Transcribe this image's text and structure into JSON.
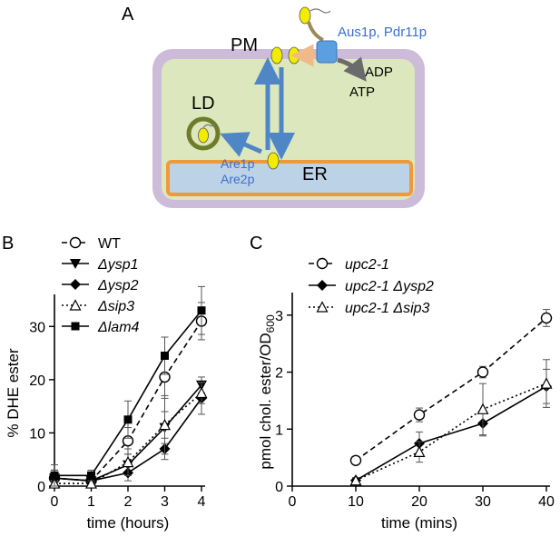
{
  "panels": {
    "a": {
      "letter": "A",
      "pm_label": "PM",
      "ld_label": "LD",
      "er_label": "ER",
      "transporter_label": "Aus1p, Pdr11p",
      "adp_label": "ADP",
      "atp_label": "ATP",
      "acyltransferase_1": "Are1p",
      "acyltransferase_2": "Are2p",
      "colors": {
        "cell_wall": "#cdbcd9",
        "cytoplasm": "#dde7bd",
        "er_fill": "#bcd2e6",
        "er_border": "#ee9a3a",
        "sterol": "#f2ec00",
        "ld_ring": "#6e7c2a",
        "arrow_blue": "#4f86c6",
        "text_blue": "#3a6fd0"
      }
    },
    "b": {
      "letter": "B"
    },
    "c": {
      "letter": "C"
    }
  },
  "chart_data": [
    {
      "type": "line",
      "panel": "B",
      "xlabel": "time (hours)",
      "ylabel": "% DHE ester",
      "x_ticks": [
        "0",
        "1",
        "2",
        "3",
        "4"
      ],
      "y_ticks": [
        "0",
        "10",
        "20",
        "30"
      ],
      "xlim": [
        0,
        4
      ],
      "ylim": [
        0,
        35
      ],
      "x": [
        0,
        1,
        2,
        3,
        4
      ],
      "legend_position": "top-left",
      "series": [
        {
          "name": "WT",
          "marker": "open-circle",
          "line": "dashed",
          "values": [
            1.5,
            1.0,
            8.5,
            20.5,
            31.0
          ],
          "err": [
            1.5,
            1.0,
            2.5,
            4.0,
            3.5
          ]
        },
        {
          "name": "Δysp1",
          "marker": "down-triangle",
          "line": "solid",
          "values": [
            1.5,
            1.0,
            4.0,
            11.0,
            19.0
          ],
          "err": [
            1.5,
            1.0,
            2.0,
            3.0,
            1.5
          ]
        },
        {
          "name": "Δysp2",
          "marker": "diamond",
          "line": "solid",
          "values": [
            1.5,
            1.0,
            2.5,
            7.0,
            16.5
          ],
          "err": [
            1.5,
            1.0,
            1.5,
            2.0,
            3.0
          ]
        },
        {
          "name": "Δsip3",
          "marker": "open-triangle",
          "line": "dotted",
          "values": [
            0.5,
            0.5,
            4.5,
            11.5,
            17.5
          ],
          "err": [
            2.5,
            1.0,
            2.5,
            5.5,
            2.0
          ]
        },
        {
          "name": "Δlam4",
          "marker": "square",
          "line": "solid",
          "values": [
            2.0,
            2.0,
            12.5,
            24.5,
            33.0
          ],
          "err": [
            2.0,
            1.0,
            3.5,
            3.5,
            4.5
          ]
        }
      ]
    },
    {
      "type": "line",
      "panel": "C",
      "xlabel": "time (mins)",
      "ylabel": "pmol chol. ester/OD",
      "ylabel_subscript": "600",
      "x_ticks": [
        "0",
        "10",
        "20",
        "30",
        "40"
      ],
      "y_ticks": [
        "0",
        "1",
        "2",
        "3"
      ],
      "xlim": [
        0,
        40
      ],
      "ylim": [
        0,
        3.3
      ],
      "x": [
        10,
        20,
        30,
        40
      ],
      "legend_position": "top",
      "series": [
        {
          "name": "upc2-1",
          "marker": "open-circle",
          "line": "dashed",
          "values": [
            0.45,
            1.25,
            2.0,
            2.95
          ],
          "err": [
            0.05,
            0.12,
            0.1,
            0.15
          ]
        },
        {
          "name": "upc2-1 Δysp2",
          "marker": "diamond",
          "line": "solid",
          "values": [
            0.1,
            0.75,
            1.1,
            1.75
          ],
          "err": [
            0.05,
            0.2,
            0.22,
            0.3
          ]
        },
        {
          "name": "upc2-1 Δsip3",
          "marker": "open-triangle",
          "line": "dotted",
          "values": [
            0.1,
            0.6,
            1.35,
            1.8
          ],
          "err": [
            0.05,
            0.18,
            0.45,
            0.42
          ]
        }
      ]
    }
  ]
}
